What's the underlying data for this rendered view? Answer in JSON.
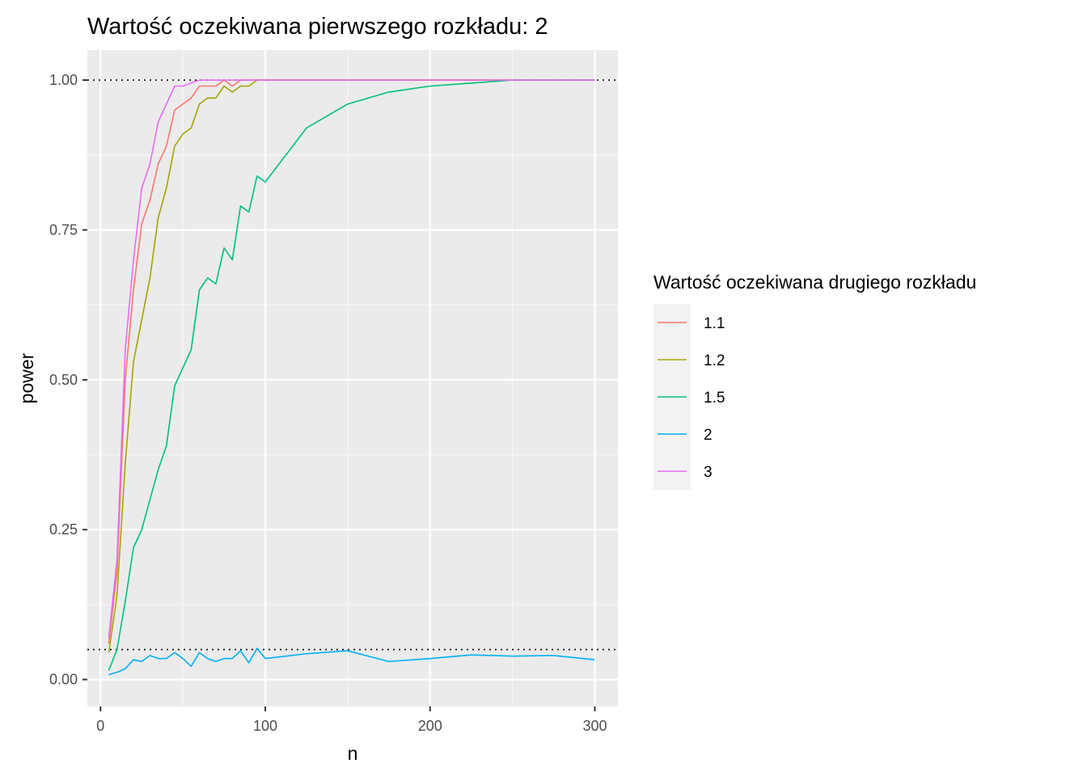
{
  "chart_data": {
    "type": "line",
    "title": "Wartość oczekiwana pierwszego rozkładu: 2",
    "xlabel": "n",
    "ylabel": "power",
    "xlim": [
      -8,
      314
    ],
    "ylim": [
      -0.045,
      1.05
    ],
    "xticks": [
      0,
      100,
      200,
      300
    ],
    "xtick_labels": [
      "0",
      "100",
      "200",
      "300"
    ],
    "yticks": [
      0,
      0.25,
      0.5,
      0.75,
      1
    ],
    "ytick_labels": [
      "0.00",
      "0.25",
      "0.50",
      "0.75",
      "1.00"
    ],
    "grid": true,
    "reference_lines": [
      1.0,
      0.05
    ],
    "legend": {
      "title": "Wartość oczekiwana drugiego rozkładu",
      "position": "right"
    },
    "series": [
      {
        "name": "1.1",
        "color": "#F8766D",
        "x": [
          5,
          10,
          15,
          20,
          25,
          30,
          35,
          40,
          45,
          50,
          55,
          60,
          65,
          70,
          75,
          80,
          85,
          90,
          95,
          100,
          125,
          150,
          175,
          200,
          225,
          250,
          275,
          300
        ],
        "y": [
          0.06,
          0.18,
          0.5,
          0.65,
          0.76,
          0.8,
          0.86,
          0.89,
          0.95,
          0.96,
          0.97,
          0.99,
          0.99,
          0.99,
          1.0,
          0.99,
          1.0,
          1.0,
          1.0,
          1.0,
          1.0,
          1.0,
          1.0,
          1.0,
          1.0,
          1.0,
          1.0,
          1.0
        ]
      },
      {
        "name": "1.2",
        "color": "#A3A500",
        "x": [
          5,
          10,
          15,
          20,
          25,
          30,
          35,
          40,
          45,
          50,
          55,
          60,
          65,
          70,
          75,
          80,
          85,
          90,
          95,
          100,
          125,
          150,
          175,
          200,
          225,
          250,
          275,
          300
        ],
        "y": [
          0.045,
          0.14,
          0.36,
          0.53,
          0.6,
          0.67,
          0.77,
          0.82,
          0.89,
          0.91,
          0.92,
          0.96,
          0.97,
          0.97,
          0.99,
          0.98,
          0.99,
          0.99,
          1.0,
          1.0,
          1.0,
          1.0,
          1.0,
          1.0,
          1.0,
          1.0,
          1.0,
          1.0
        ]
      },
      {
        "name": "1.5",
        "color": "#00BF7D",
        "x": [
          5,
          10,
          15,
          20,
          25,
          30,
          35,
          40,
          45,
          50,
          55,
          60,
          65,
          70,
          75,
          80,
          85,
          90,
          95,
          100,
          125,
          150,
          175,
          200,
          225,
          250,
          275,
          300
        ],
        "y": [
          0.015,
          0.05,
          0.13,
          0.22,
          0.25,
          0.3,
          0.35,
          0.39,
          0.49,
          0.52,
          0.55,
          0.65,
          0.67,
          0.66,
          0.72,
          0.7,
          0.79,
          0.78,
          0.84,
          0.83,
          0.92,
          0.96,
          0.98,
          0.99,
          0.995,
          1.0,
          1.0,
          1.0
        ]
      },
      {
        "name": "2",
        "color": "#00B0F6",
        "x": [
          5,
          10,
          15,
          20,
          25,
          30,
          35,
          40,
          45,
          50,
          55,
          60,
          65,
          70,
          75,
          80,
          85,
          90,
          95,
          100,
          125,
          150,
          175,
          200,
          225,
          250,
          275,
          300
        ],
        "y": [
          0.008,
          0.012,
          0.018,
          0.033,
          0.03,
          0.04,
          0.035,
          0.035,
          0.045,
          0.035,
          0.022,
          0.045,
          0.035,
          0.03,
          0.035,
          0.035,
          0.048,
          0.028,
          0.052,
          0.035,
          0.043,
          0.048,
          0.03,
          0.035,
          0.041,
          0.039,
          0.04,
          0.033
        ]
      },
      {
        "name": "3",
        "color": "#E76BF3",
        "x": [
          5,
          10,
          15,
          20,
          25,
          30,
          35,
          40,
          45,
          50,
          55,
          60,
          65,
          70,
          75,
          80,
          85,
          90,
          95,
          100,
          125,
          150,
          175,
          200,
          225,
          250,
          275,
          300
        ],
        "y": [
          0.07,
          0.2,
          0.55,
          0.7,
          0.82,
          0.86,
          0.93,
          0.96,
          0.99,
          0.99,
          0.995,
          1.0,
          1.0,
          1.0,
          1.0,
          1.0,
          1.0,
          1.0,
          1.0,
          1.0,
          1.0,
          1.0,
          1.0,
          1.0,
          1.0,
          1.0,
          1.0,
          1.0
        ]
      }
    ]
  }
}
